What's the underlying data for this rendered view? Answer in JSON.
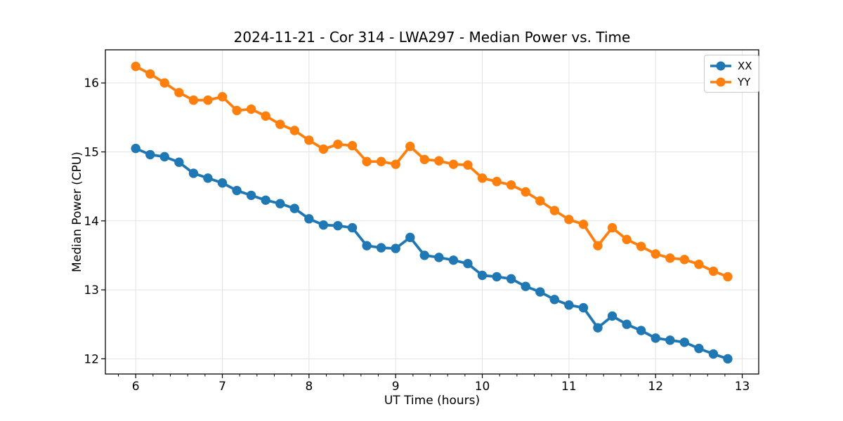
{
  "chart_data": {
    "type": "line",
    "title": "2024-11-21 - Cor 314 - LWA297 - Median Power vs. Time",
    "xlabel": "UT Time (hours)",
    "ylabel": "Median Power (CPU)",
    "xlim": [
      5.65,
      13.19
    ],
    "ylim": [
      11.78,
      16.48
    ],
    "x_ticks": [
      6,
      7,
      8,
      9,
      10,
      11,
      12,
      13
    ],
    "y_ticks": [
      12,
      13,
      14,
      15,
      16
    ],
    "x_minor_tick_step": 0.2,
    "grid": true,
    "legend_position": "upper right",
    "background_color": "#ffffff",
    "grid_color": "#e3e3e3",
    "x": [
      6.0,
      6.167,
      6.333,
      6.5,
      6.667,
      6.833,
      7.0,
      7.167,
      7.333,
      7.5,
      7.667,
      7.833,
      8.0,
      8.167,
      8.333,
      8.5,
      8.667,
      8.833,
      9.0,
      9.167,
      9.333,
      9.5,
      9.667,
      9.833,
      10.0,
      10.167,
      10.333,
      10.5,
      10.667,
      10.833,
      11.0,
      11.167,
      11.333,
      11.5,
      11.667,
      11.833,
      12.0,
      12.167,
      12.333,
      12.5,
      12.667,
      12.833
    ],
    "series": [
      {
        "name": "XX",
        "color": "#1f77b4",
        "marker": "circle",
        "values": [
          15.05,
          14.96,
          14.93,
          14.85,
          14.69,
          14.62,
          14.55,
          14.44,
          14.37,
          14.3,
          14.25,
          14.18,
          14.03,
          13.94,
          13.93,
          13.9,
          13.64,
          13.61,
          13.6,
          13.76,
          13.5,
          13.47,
          13.43,
          13.38,
          13.21,
          13.19,
          13.16,
          13.05,
          12.97,
          12.86,
          12.78,
          12.74,
          12.45,
          12.62,
          12.5,
          12.41,
          12.3,
          12.27,
          12.24,
          12.15,
          12.07,
          12.0
        ]
      },
      {
        "name": "YY",
        "color": "#ff7f0e",
        "marker": "circle",
        "values": [
          16.24,
          16.13,
          16.0,
          15.86,
          15.75,
          15.75,
          15.8,
          15.6,
          15.62,
          15.52,
          15.4,
          15.31,
          15.17,
          15.04,
          15.11,
          15.09,
          14.86,
          14.86,
          14.82,
          15.08,
          14.89,
          14.87,
          14.82,
          14.81,
          14.62,
          14.57,
          14.52,
          14.42,
          14.29,
          14.15,
          14.02,
          13.95,
          13.64,
          13.9,
          13.73,
          13.63,
          13.52,
          13.46,
          13.44,
          13.37,
          13.27,
          13.19
        ]
      }
    ]
  }
}
